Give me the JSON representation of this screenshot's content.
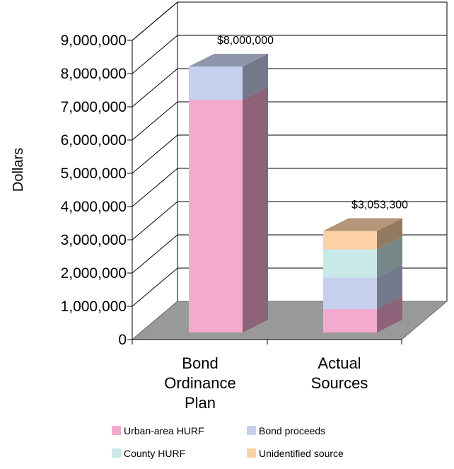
{
  "chart_data": {
    "type": "bar",
    "stacked": true,
    "three_d": true,
    "categories": [
      [
        "Bond",
        "Ordinance",
        "Plan"
      ],
      [
        "Actual",
        "Sources"
      ]
    ],
    "series": [
      {
        "name": "Urban-area HURF",
        "values": [
          7000000,
          700000
        ],
        "color": "#f4a9cf"
      },
      {
        "name": "Bond proceeds",
        "values": [
          1000000,
          950000
        ],
        "color": "#c6d0ee"
      },
      {
        "name": "County HURF",
        "values": [
          0,
          850000
        ],
        "color": "#c9e9e9"
      },
      {
        "name": "Unidentified source",
        "values": [
          0,
          553300
        ],
        "color": "#fcd1a6"
      }
    ],
    "totals": [
      "$8,000,000",
      "$3,053,300"
    ],
    "ylabel": "Dollars",
    "ylim": [
      0,
      9000000
    ],
    "yticks": [
      "0",
      "1,000,000",
      "2,000,000",
      "3,000,000",
      "4,000,000",
      "5,000,000",
      "6,000,000",
      "7,000,000",
      "8,000,000",
      "9,000,000"
    ],
    "grid": true,
    "legend_position": "bottom"
  }
}
